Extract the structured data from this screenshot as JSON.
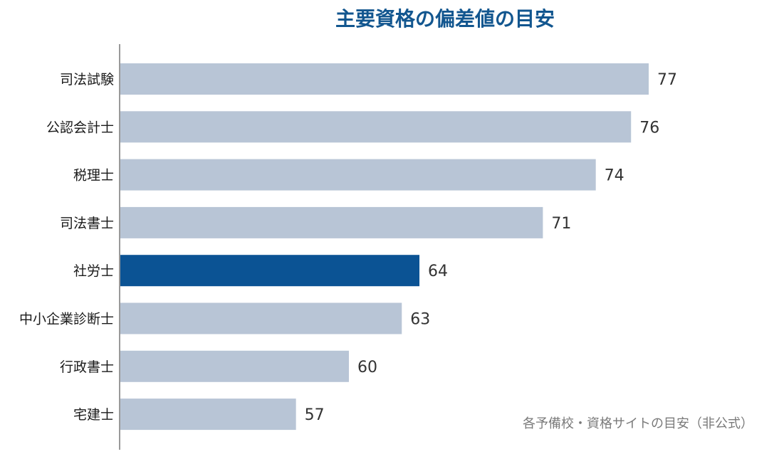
{
  "chart_data": {
    "type": "bar",
    "orientation": "horizontal",
    "title": "主要資格の偏差値の目安",
    "categories": [
      "司法試験",
      "公認会計士",
      "税理士",
      "司法書士",
      "社労士",
      "中小企業診断士",
      "行政書士",
      "宅建士"
    ],
    "values": [
      77,
      76,
      74,
      71,
      64,
      63,
      60,
      57
    ],
    "highlight_category": "社労士",
    "xlim": [
      47,
      77
    ],
    "grid": false,
    "legend": "none",
    "annotation": "各予備校・資格サイトの目安（非公式）"
  },
  "colors": {
    "title": "#12568f",
    "bar_default": "#b8c5d6",
    "bar_highlight": "#0b5394",
    "axis": "#999999"
  }
}
